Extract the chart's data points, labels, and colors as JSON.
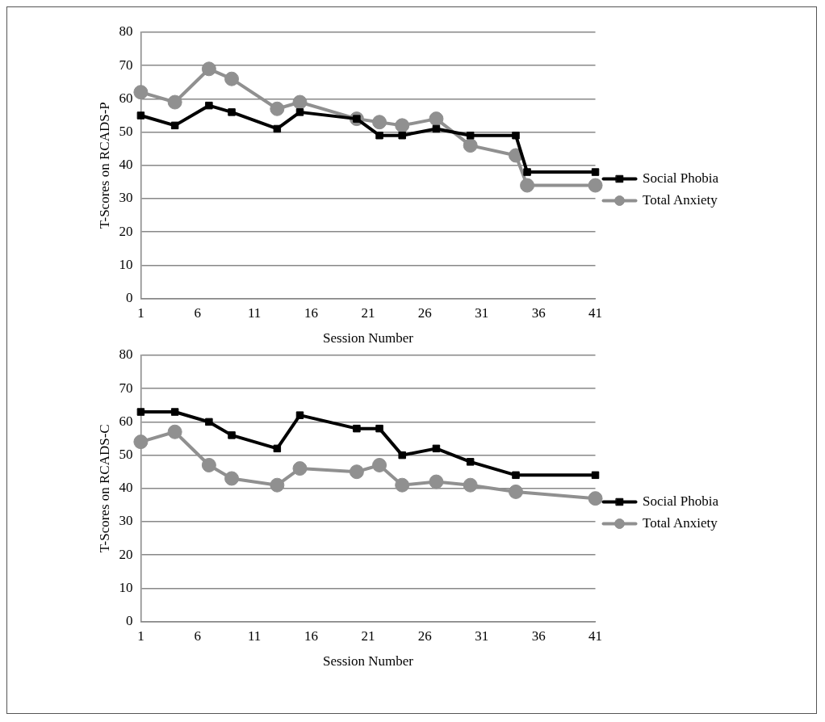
{
  "chart_data": [
    {
      "type": "line",
      "xlabel": "Session Number",
      "ylabel": "T-Scores on RCADS-P",
      "xlim": [
        1,
        41
      ],
      "xticks": [
        1,
        6,
        11,
        16,
        21,
        26,
        31,
        36,
        41
      ],
      "ylim": [
        0,
        80
      ],
      "yticks": [
        0,
        10,
        20,
        30,
        40,
        50,
        60,
        70,
        80
      ],
      "grid": "y",
      "legend": "right",
      "series": [
        {
          "name": "Social Phobia",
          "color": "#000000",
          "marker": "square",
          "x": [
            1,
            4,
            7,
            9,
            13,
            15,
            20,
            22,
            24,
            27,
            30,
            34,
            35,
            41
          ],
          "values": [
            55,
            52,
            58,
            56,
            51,
            56,
            54,
            49,
            49,
            51,
            49,
            49,
            38,
            38
          ]
        },
        {
          "name": "Total Anxiety",
          "color": "#909090",
          "marker": "circle",
          "x": [
            1,
            4,
            7,
            9,
            13,
            15,
            20,
            22,
            24,
            27,
            30,
            34,
            35,
            41
          ],
          "values": [
            62,
            59,
            69,
            66,
            57,
            59,
            54,
            53,
            52,
            54,
            46,
            43,
            34,
            34
          ]
        }
      ]
    },
    {
      "type": "line",
      "xlabel": "Session Number",
      "ylabel": "T-Scores on RCADS-C",
      "xlim": [
        1,
        41
      ],
      "xticks": [
        1,
        6,
        11,
        16,
        21,
        26,
        31,
        36,
        41
      ],
      "ylim": [
        0,
        80
      ],
      "yticks": [
        0,
        10,
        20,
        30,
        40,
        50,
        60,
        70,
        80
      ],
      "grid": "y",
      "legend": "right",
      "series": [
        {
          "name": "Social Phobia",
          "color": "#000000",
          "marker": "square",
          "x": [
            1,
            4,
            7,
            9,
            13,
            15,
            20,
            22,
            24,
            27,
            30,
            34,
            41
          ],
          "values": [
            63,
            63,
            60,
            56,
            52,
            62,
            58,
            58,
            50,
            52,
            48,
            44,
            44
          ]
        },
        {
          "name": "Total Anxiety",
          "color": "#909090",
          "marker": "circle",
          "x": [
            1,
            4,
            7,
            9,
            13,
            15,
            20,
            22,
            24,
            27,
            30,
            34,
            41
          ],
          "values": [
            54,
            57,
            47,
            43,
            41,
            46,
            45,
            47,
            41,
            42,
            41,
            39,
            37
          ]
        }
      ]
    }
  ]
}
